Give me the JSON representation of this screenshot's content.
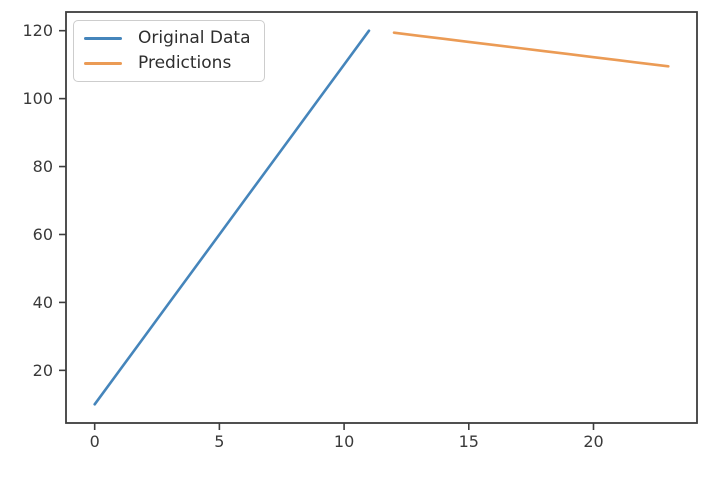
{
  "figure": {
    "background": "#ffffff",
    "spine_color": "#3d3d3d",
    "tick_color": "#3d3d3d",
    "tick_label_color": "#3a3a3a"
  },
  "legend": {
    "position": "upper left"
  },
  "chart_data": {
    "type": "line",
    "title": "",
    "xlabel": "",
    "ylabel": "",
    "grid": false,
    "legend_position": "upper left",
    "xlim": [
      -1.15,
      24.15
    ],
    "ylim": [
      4.5,
      125.5
    ],
    "xticks": [
      0,
      5,
      10,
      15,
      20
    ],
    "yticks": [
      20,
      40,
      60,
      80,
      100,
      120
    ],
    "series": [
      {
        "name": "Original Data",
        "color": "#4585bb",
        "x": [
          0,
          1,
          2,
          3,
          4,
          5,
          6,
          7,
          8,
          9,
          10,
          11
        ],
        "y": [
          10,
          20,
          30,
          40,
          50,
          60,
          70,
          80,
          90,
          100,
          110,
          120
        ]
      },
      {
        "name": "Predictions",
        "color": "#eb9b55",
        "x": [
          12,
          13,
          14,
          15,
          16,
          17,
          18,
          19,
          20,
          21,
          22,
          23
        ],
        "y": [
          119.4,
          118.5,
          117.6,
          116.7,
          115.8,
          114.9,
          114.0,
          113.1,
          112.2,
          111.3,
          110.4,
          109.5
        ]
      }
    ]
  }
}
